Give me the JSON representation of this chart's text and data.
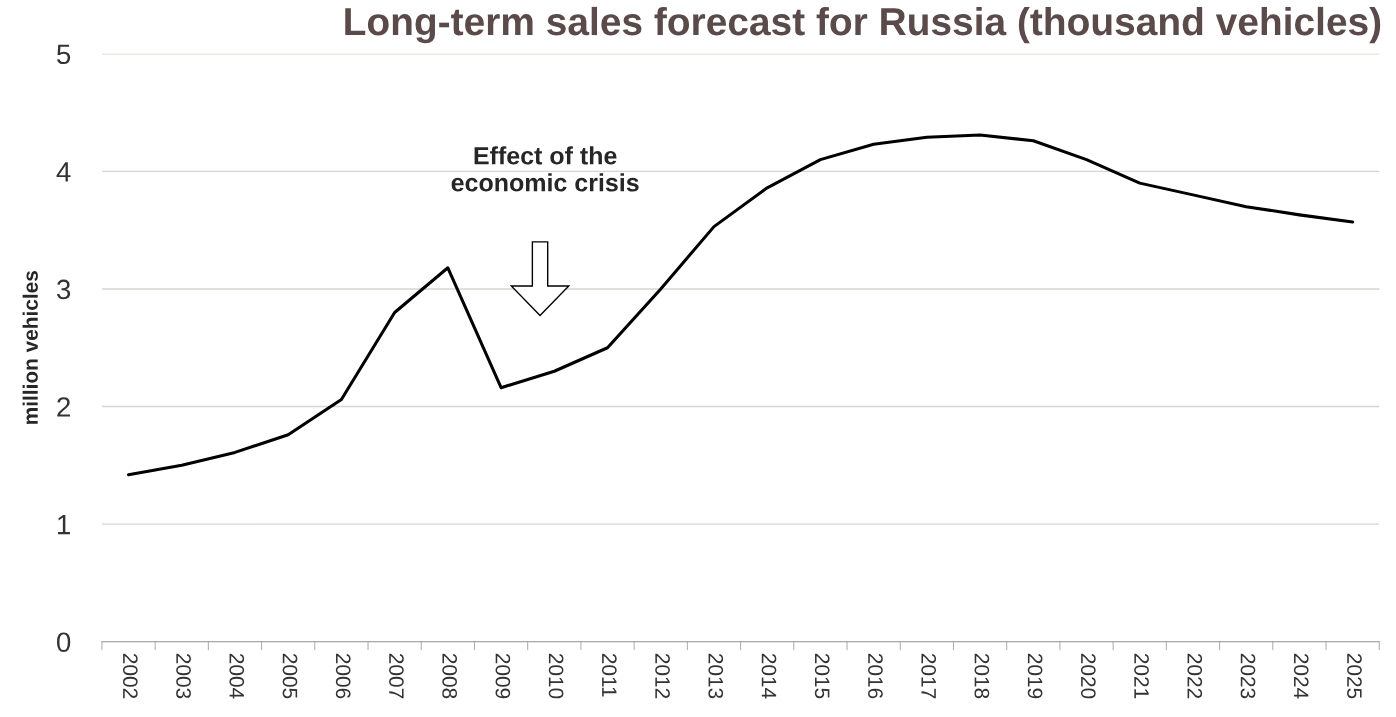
{
  "chart_data": {
    "type": "line",
    "title": "Long-term sales forecast for Russia (thousand vehicles)",
    "ylabel": "million vehicles",
    "categories": [
      "2002",
      "2003",
      "2004",
      "2005",
      "2006",
      "2007",
      "2008",
      "2009",
      "2010",
      "2011",
      "2012",
      "2013",
      "2014",
      "2015",
      "2016",
      "2017",
      "2018",
      "2019",
      "2020",
      "2021",
      "2022",
      "2023",
      "2024",
      "2025"
    ],
    "series": [
      {
        "color": "#000000",
        "values": [
          1.42,
          1.5,
          1.61,
          1.76,
          2.06,
          2.8,
          3.18,
          2.16,
          2.3,
          2.5,
          3.0,
          3.53,
          3.86,
          4.1,
          4.23,
          4.29,
          4.31,
          4.26,
          4.1,
          3.9,
          3.8,
          3.7,
          3.63,
          3.57
        ]
      }
    ],
    "ylim": [
      0,
      5
    ],
    "yticks": [
      0,
      1,
      2,
      3,
      4,
      5
    ],
    "grid": "y",
    "marker": "none",
    "line_style": "solid",
    "annotations": [
      "Effect of the\neconomic crisis"
    ]
  }
}
